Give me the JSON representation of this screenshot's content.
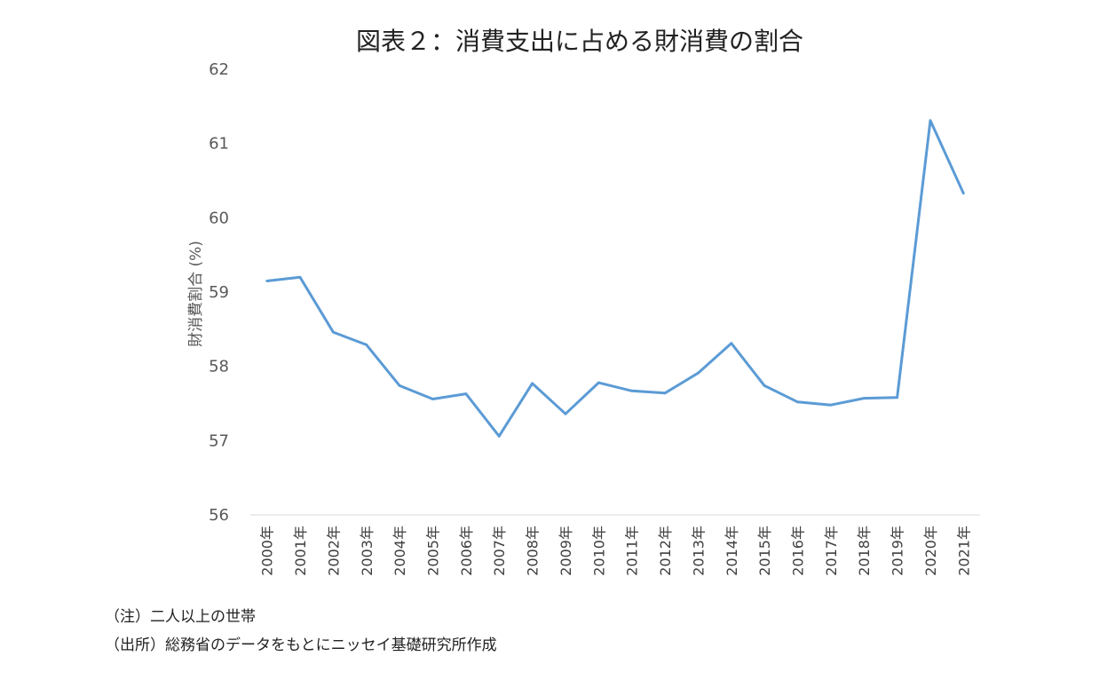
{
  "chart_data": {
    "type": "line",
    "title": "図表２：消費支出に占める財消費の割合",
    "xlabel": "",
    "ylabel": "財消費割合 (%)",
    "ylim": [
      56,
      62
    ],
    "yticks": [
      "56",
      "57",
      "58",
      "59",
      "60",
      "61",
      "62"
    ],
    "grid": false,
    "categories": [
      "2000年",
      "2001年",
      "2002年",
      "2003年",
      "2004年",
      "2005年",
      "2006年",
      "2007年",
      "2008年",
      "2009年",
      "2010年",
      "2011年",
      "2012年",
      "2013年",
      "2014年",
      "2015年",
      "2016年",
      "2017年",
      "2018年",
      "2019年",
      "2020年",
      "2021年"
    ],
    "series": [
      {
        "name": "",
        "color": "#5b9bd5",
        "values": [
          59.15,
          59.2,
          58.46,
          58.29,
          57.74,
          57.56,
          57.63,
          57.06,
          57.77,
          57.36,
          57.78,
          57.67,
          57.64,
          57.91,
          58.31,
          57.74,
          57.52,
          57.48,
          57.57,
          57.58,
          61.31,
          60.33
        ]
      }
    ]
  },
  "notes": {
    "note1": "（注）二人以上の世帯",
    "note2": "（出所）総務省のデータをもとにニッセイ基礎研究所作成"
  }
}
